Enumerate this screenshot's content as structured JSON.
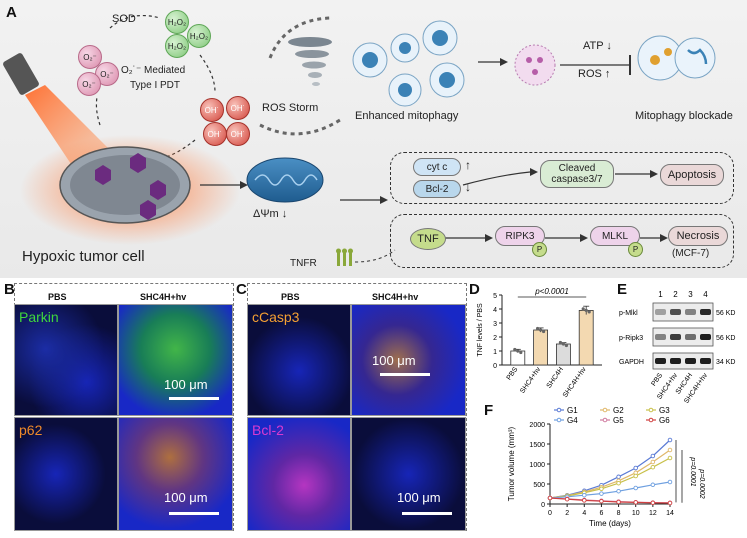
{
  "panels": {
    "A": "A",
    "B": "B",
    "C": "C",
    "D": "D",
    "E": "E",
    "F": "F"
  },
  "panelA": {
    "sod": "SOD",
    "o2": "O₂⁻",
    "h2o2": "H₂O₂",
    "oh": "OH˙",
    "pdt_line1": "O₂˙⁻ Mediated",
    "pdt_line2": "Type I PDT",
    "ros_storm": "ROS Storm",
    "enhanced_mitophagy": "Enhanced mitophagy",
    "atp": "ATP ↓",
    "ros": "ROS ↑",
    "mitophagy_blockade": "Mitophagy blockade",
    "delta_psi": "ΔΨm ↓",
    "cell_label": "Hypoxic tumor cell",
    "cytc": "cyt c",
    "bcl2": "Bcl-2",
    "cleaved_line1": "Cleaved",
    "cleaved_line2": "caspase3/7",
    "apoptosis": "Apoptosis",
    "tnf": "TNF",
    "ripk3": "RIPK3",
    "mlkl": "MLKL",
    "p": "P",
    "necrosis": "Necrosis",
    "mcf7": "(MCF-7)",
    "tnfr": "TNFR",
    "up": "↑",
    "down": "↓"
  },
  "panelB": {
    "col1": "PBS",
    "col2": "SHC4H+hv",
    "row1": "Parkin",
    "row2": "p62",
    "scale": "100 μm",
    "scale2": "100 μm"
  },
  "panelC": {
    "col1": "PBS",
    "col2": "SHC4H+hv",
    "row1": "cCasp3",
    "row2": "Bcl-2",
    "scale": "100 μm",
    "scale2": "100 μm"
  },
  "colors": {
    "parkin": "#3fd83c",
    "p62": "#f08a2a",
    "ccasp3": "#f5a033",
    "bcl2": "#d83ad0",
    "nuclei": "#1a2bd6"
  },
  "panelD": {
    "ylabel": "TNF levels / PBS",
    "pvalue": "p<0.0001",
    "chart_data": {
      "type": "bar",
      "categories": [
        "PBS",
        "SHC4+hv",
        "SHC4H",
        "SHC4H+hv"
      ],
      "values": [
        1.0,
        2.5,
        1.5,
        3.9
      ],
      "errors": [
        0.12,
        0.15,
        0.1,
        0.3
      ],
      "ylim": [
        0,
        5
      ],
      "yticks": [
        "0",
        "1",
        "2",
        "3",
        "4",
        "5"
      ],
      "colors": [
        "#ffffff",
        "#f3d9b1",
        "#dcdcdc",
        "#f3d9b1"
      ]
    }
  },
  "panelE": {
    "lanes": [
      "1",
      "2",
      "3",
      "4"
    ],
    "rows": [
      {
        "name": "p-Mlkl",
        "kd": "56 KD",
        "intensity": [
          0.35,
          0.75,
          0.5,
          0.95
        ]
      },
      {
        "name": "p-Ripk3",
        "kd": "56 KD",
        "intensity": [
          0.5,
          0.85,
          0.6,
          1.0
        ]
      },
      {
        "name": "GAPDH",
        "kd": "34 KD",
        "intensity": [
          1.0,
          1.0,
          1.0,
          1.0
        ]
      }
    ],
    "xlabels": [
      "PBS",
      "SHC4+hv",
      "SHC4H",
      "SHC4H+hv"
    ]
  },
  "panelF": {
    "ylabel": "Tumor volume (mm³)",
    "xlabel": "Time (days)",
    "pvalue": "p=0.0001",
    "pvalue2": "p=0.0002",
    "chart_data": {
      "type": "line",
      "x": [
        0,
        2,
        4,
        6,
        8,
        10,
        12,
        14
      ],
      "xlim": [
        0,
        14
      ],
      "ylim": [
        0,
        2000
      ],
      "yticks": [
        0,
        500,
        1000,
        1500,
        2000
      ],
      "legend_placement": "top",
      "series": [
        {
          "name": "G1",
          "color": "#5b7bd5",
          "values": [
            150,
            220,
            330,
            470,
            680,
            900,
            1200,
            1600
          ]
        },
        {
          "name": "G2",
          "color": "#e0b86a",
          "values": [
            150,
            210,
            300,
            420,
            580,
            780,
            1050,
            1350
          ]
        },
        {
          "name": "G3",
          "color": "#c8c04a",
          "values": [
            150,
            200,
            280,
            380,
            520,
            700,
            920,
            1150
          ]
        },
        {
          "name": "G4",
          "color": "#6fa0e0",
          "values": [
            150,
            180,
            220,
            260,
            320,
            400,
            480,
            550
          ]
        },
        {
          "name": "G5",
          "color": "#d07aa0",
          "values": [
            150,
            130,
            100,
            80,
            60,
            45,
            35,
            30
          ]
        },
        {
          "name": "G6",
          "color": "#d04040",
          "values": [
            150,
            120,
            90,
            70,
            50,
            40,
            30,
            25
          ]
        }
      ]
    }
  }
}
